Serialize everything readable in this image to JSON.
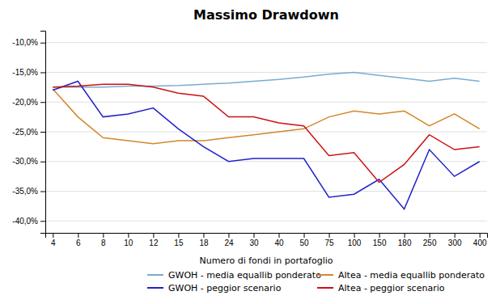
{
  "chart_data": {
    "type": "line",
    "title": "Massimo Drawdown",
    "xlabel": "Numero di fondi in portafoglio",
    "categories": [
      "4",
      "6",
      "8",
      "10",
      "12",
      "15",
      "18",
      "24",
      "30",
      "40",
      "50",
      "75",
      "100",
      "150",
      "180",
      "250",
      "300",
      "400"
    ],
    "series": [
      {
        "name": "GWOH - media equallib ponderato",
        "color": "#7aaccf",
        "values": [
          -17.5,
          -17.5,
          -17.5,
          -17.3,
          -17.3,
          -17.2,
          -17.0,
          -16.8,
          -16.5,
          -16.2,
          -15.8,
          -15.3,
          -15.0,
          -15.5,
          -16.0,
          -16.5,
          -16.0,
          -16.5
        ]
      },
      {
        "name": "Altea - media equallib ponderato",
        "color": "#d4862a",
        "values": [
          -17.8,
          -22.5,
          -26.0,
          -26.5,
          -27.0,
          -26.5,
          -26.5,
          -26.0,
          -25.5,
          -25.0,
          -24.5,
          -22.5,
          -21.5,
          -22.0,
          -21.5,
          -24.0,
          -22.0,
          -24.5
        ]
      },
      {
        "name": "GWOH - peggior scenario",
        "color": "#2222cc",
        "values": [
          -18.0,
          -16.5,
          -22.5,
          -22.0,
          -21.0,
          -24.5,
          -27.5,
          -30.0,
          -29.5,
          -29.5,
          -29.5,
          -36.0,
          -35.5,
          -33.0,
          -38.0,
          -28.0,
          -32.5,
          -30.0
        ]
      },
      {
        "name": "Altea - peggior scenario",
        "color": "#cc1111",
        "values": [
          -17.5,
          -17.3,
          -17.0,
          -17.0,
          -17.5,
          -18.5,
          -19.0,
          -22.5,
          -22.5,
          -23.5,
          -24.0,
          -29.0,
          -28.5,
          -33.5,
          -30.5,
          -25.5,
          -28.0,
          -27.5
        ]
      }
    ],
    "ylim": [
      -42,
      -8
    ],
    "yticks": [
      {
        "value": -10,
        "label": "-10,0%"
      },
      {
        "value": -15,
        "label": "-15,0%"
      },
      {
        "value": -20,
        "label": "-20,0%"
      },
      {
        "value": -25,
        "label": "-25,0%"
      },
      {
        "value": -30,
        "label": "-30,0%"
      },
      {
        "value": -35,
        "label": "-35,0%"
      },
      {
        "value": -40,
        "label": "-40,0%"
      }
    ],
    "grid": true,
    "legend": "lower right"
  }
}
